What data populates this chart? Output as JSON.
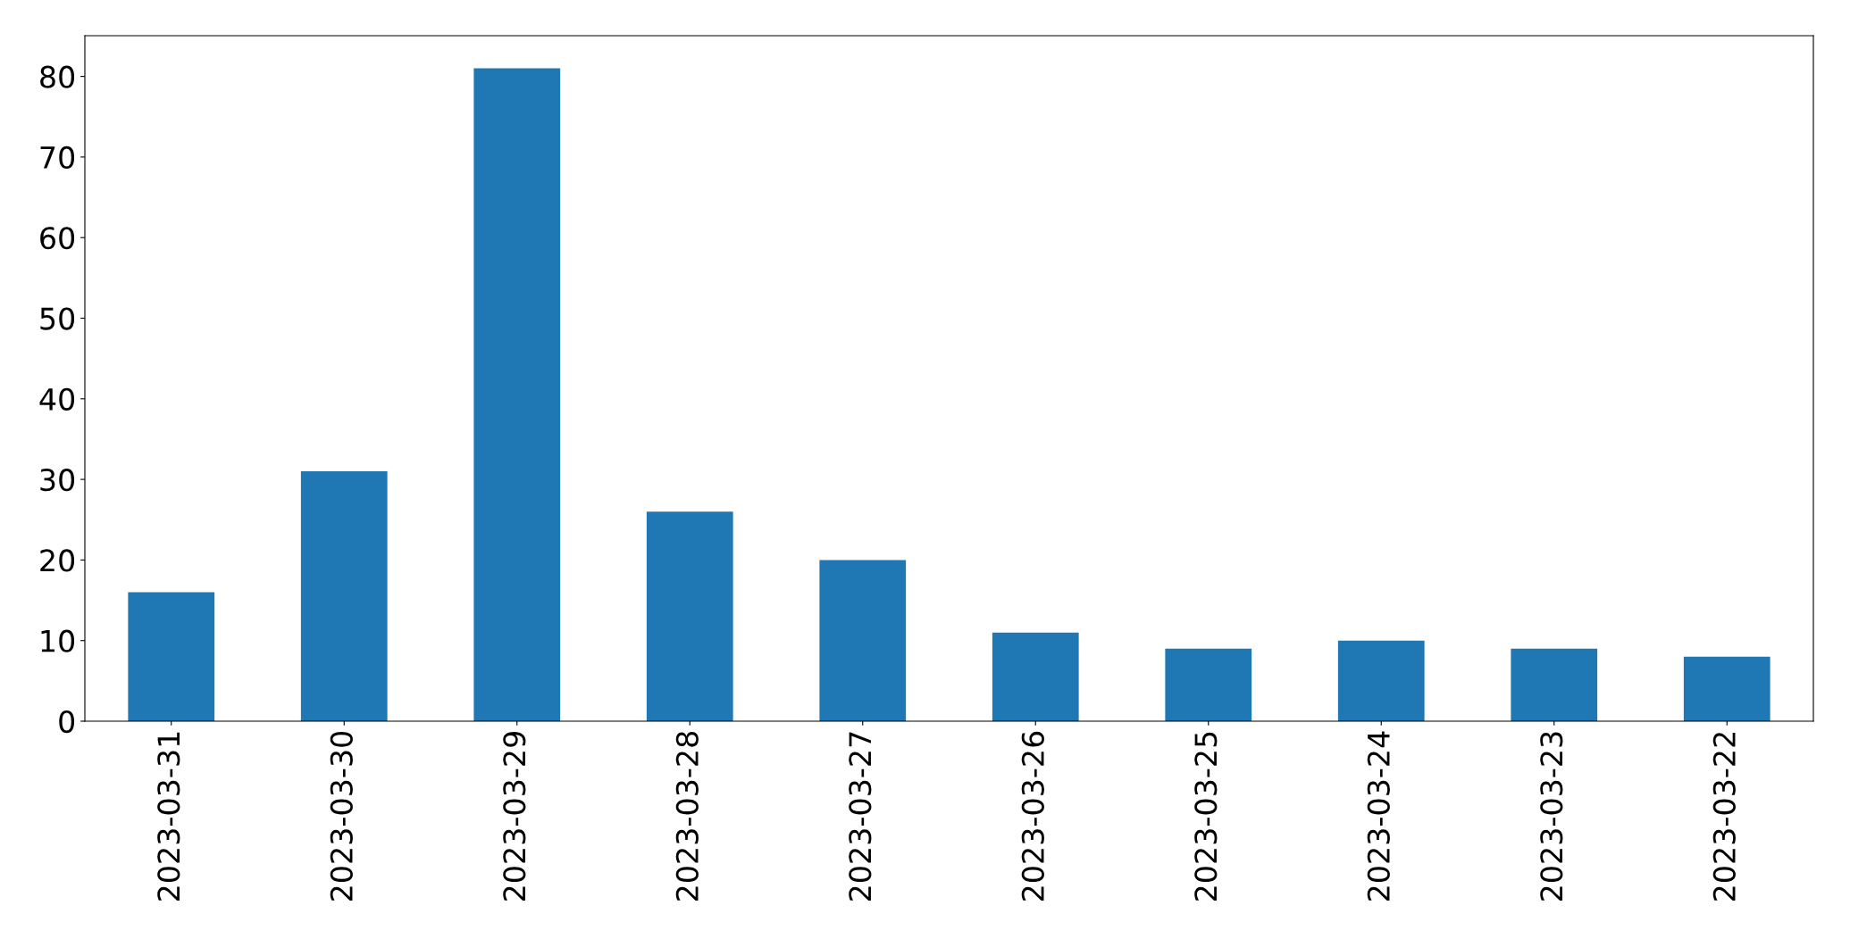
{
  "chart_data": {
    "type": "bar",
    "categories": [
      "2023-03-31",
      "2023-03-30",
      "2023-03-29",
      "2023-03-28",
      "2023-03-27",
      "2023-03-26",
      "2023-03-25",
      "2023-03-24",
      "2023-03-23",
      "2023-03-22"
    ],
    "values": [
      16,
      31,
      81,
      26,
      20,
      11,
      9,
      10,
      9,
      8
    ],
    "color": "#1f77b4",
    "ylim": [
      0,
      85.05
    ],
    "yticks": [
      0,
      10,
      20,
      30,
      40,
      50,
      60,
      70,
      80
    ],
    "grid": false,
    "legend": false
  }
}
